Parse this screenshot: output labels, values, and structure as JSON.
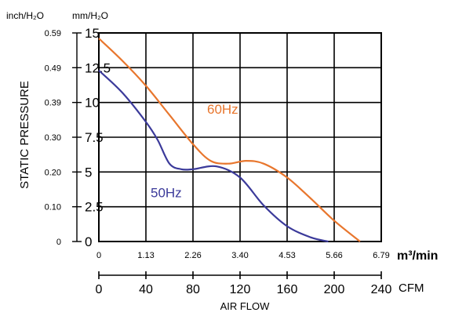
{
  "chart_data": {
    "type": "line",
    "ylabel": "STATIC PRESSURE",
    "xlabel": "AIR FLOW",
    "y_unit_left": "inch/H₂O",
    "y_unit_right": "mm/H₂O",
    "x_unit_top": "m³/min",
    "x_unit_bottom": "CFM",
    "y_ticks_mm": [
      "0",
      "2.5",
      "5",
      "7.5",
      "10",
      "12.5",
      "15"
    ],
    "y_ticks_inch": [
      "0",
      "0.10",
      "0.20",
      "0.30",
      "0.39",
      "0.49",
      "0.59"
    ],
    "x_ticks_m3min": [
      "0",
      "1.13",
      "2.26",
      "3.40",
      "4.53",
      "5.66",
      "6.79"
    ],
    "x_ticks_cfm": [
      "0",
      "40",
      "80",
      "120",
      "160",
      "200",
      "240"
    ],
    "xlim_cfm": [
      0,
      240
    ],
    "ylim_mm": [
      0,
      15
    ],
    "grid": true,
    "series": [
      {
        "name": "60Hz",
        "color": "#e8762d",
        "x": [
          0,
          20,
          40,
          60,
          80,
          95,
          110,
          125,
          140,
          160,
          180,
          200,
          222
        ],
        "y": [
          14.6,
          13.0,
          11.2,
          9.1,
          7.0,
          5.8,
          5.6,
          5.8,
          5.6,
          4.6,
          3.1,
          1.5,
          0
        ]
      },
      {
        "name": "50Hz",
        "color": "#3b3a9a",
        "x": [
          0,
          20,
          40,
          50,
          60,
          70,
          80,
          100,
          120,
          140,
          160,
          180,
          195
        ],
        "y": [
          12.3,
          10.7,
          8.6,
          7.3,
          5.6,
          5.2,
          5.2,
          5.4,
          4.6,
          2.6,
          1.1,
          0.3,
          0
        ]
      }
    ]
  }
}
